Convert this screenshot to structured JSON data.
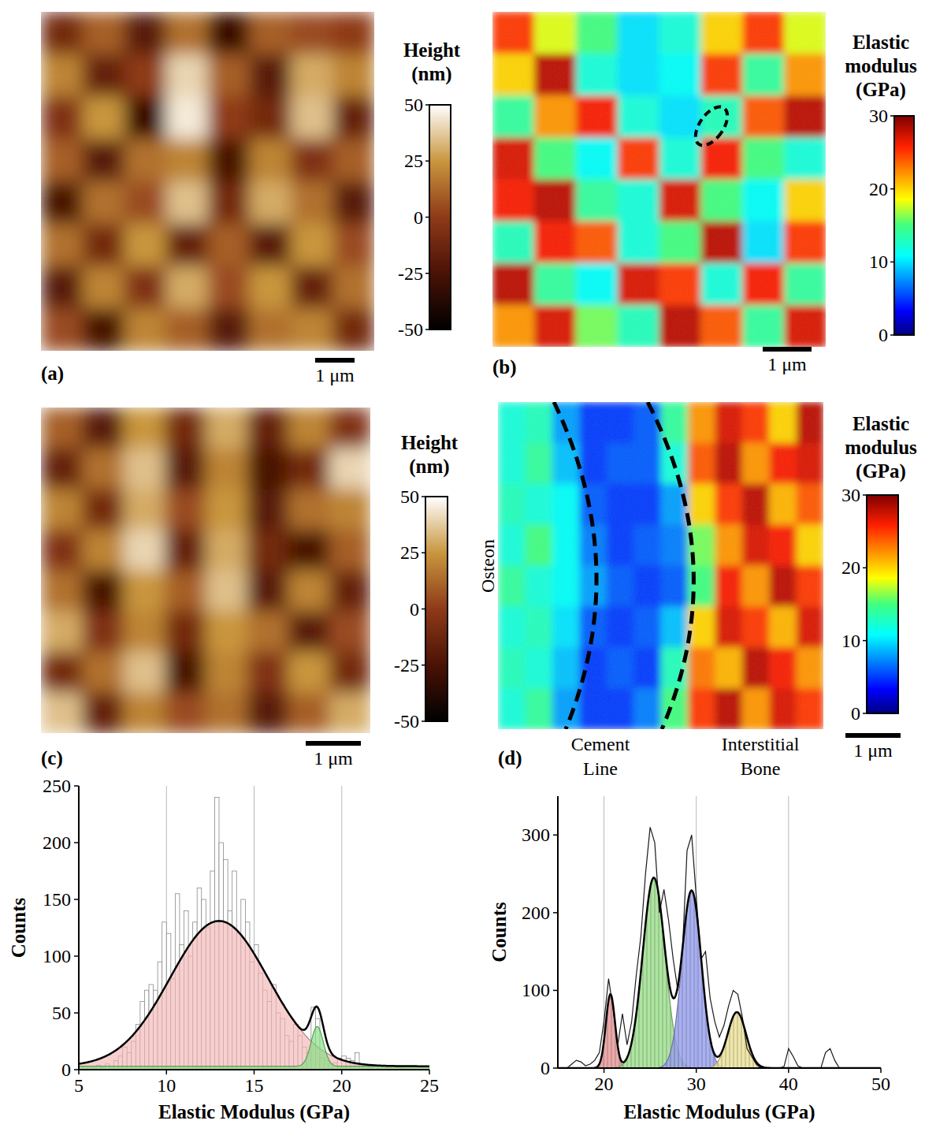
{
  "chart_data": [
    {
      "type": "heatmap",
      "panel_label": "(a)",
      "color": "copper",
      "scale_bar": "1 μm",
      "colorbar": {
        "title": "Height (nm)",
        "range": [
          -50,
          50
        ],
        "ticks": [
          -50,
          -25,
          0,
          25,
          50
        ]
      },
      "cells": [
        [
          -10,
          10,
          -20,
          15,
          -30,
          10,
          5,
          0
        ],
        [
          20,
          -15,
          0,
          40,
          10,
          -20,
          30,
          20
        ],
        [
          -5,
          25,
          -30,
          45,
          0,
          -10,
          35,
          -15
        ],
        [
          10,
          -20,
          15,
          20,
          -25,
          20,
          -5,
          10
        ],
        [
          -25,
          15,
          5,
          35,
          -10,
          30,
          15,
          -20
        ],
        [
          15,
          -10,
          25,
          -15,
          10,
          -20,
          25,
          5
        ],
        [
          -20,
          20,
          -5,
          30,
          5,
          25,
          -15,
          15
        ],
        [
          5,
          -25,
          20,
          10,
          -20,
          15,
          20,
          -10
        ]
      ]
    },
    {
      "type": "heatmap",
      "panel_label": "(b)",
      "color": "jet",
      "scale_bar": "1 μm",
      "colorbar": {
        "title": "Elastic modulus (GPa)",
        "range": [
          0,
          30
        ],
        "ticks": [
          0,
          10,
          20,
          30
        ]
      },
      "cells": [
        [
          25,
          18,
          15,
          10,
          12,
          20,
          25,
          18
        ],
        [
          20,
          28,
          12,
          10,
          11,
          25,
          14,
          22
        ],
        [
          14,
          22,
          26,
          12,
          10,
          13,
          24,
          28
        ],
        [
          27,
          15,
          11,
          25,
          12,
          26,
          15,
          12
        ],
        [
          26,
          28,
          14,
          12,
          27,
          15,
          11,
          20
        ],
        [
          13,
          26,
          24,
          12,
          15,
          28,
          10,
          25
        ],
        [
          28,
          14,
          11,
          27,
          25,
          12,
          26,
          14
        ],
        [
          22,
          27,
          16,
          13,
          28,
          24,
          14,
          27
        ]
      ]
    },
    {
      "type": "heatmap",
      "panel_label": "(c)",
      "color": "copper",
      "scale_bar": "1 μm",
      "colorbar": {
        "title": "Height (nm)",
        "range": [
          -50,
          50
        ],
        "ticks": [
          -50,
          -25,
          0,
          25,
          50
        ]
      },
      "cells": [
        [
          10,
          -20,
          25,
          -10,
          30,
          -15,
          20,
          -5
        ],
        [
          -15,
          15,
          35,
          -20,
          20,
          -25,
          -10,
          40
        ],
        [
          20,
          -10,
          30,
          5,
          25,
          -20,
          15,
          20
        ],
        [
          -5,
          20,
          40,
          -15,
          30,
          -10,
          -25,
          10
        ],
        [
          15,
          -25,
          25,
          10,
          35,
          -20,
          20,
          -15
        ],
        [
          30,
          -5,
          20,
          -10,
          25,
          15,
          -20,
          5
        ],
        [
          -10,
          15,
          35,
          -25,
          20,
          -5,
          25,
          -10
        ],
        [
          35,
          -15,
          20,
          5,
          15,
          -20,
          10,
          30
        ]
      ]
    },
    {
      "type": "heatmap",
      "panel_label": "(d)",
      "color": "jet",
      "scale_bar": "1 μm",
      "annotations": [
        "Osteon",
        "Cement Line",
        "Interstitial Bone"
      ],
      "colorbar": {
        "title": "Elastic modulus (GPa)",
        "range": [
          0,
          30
        ],
        "ticks": [
          0,
          10,
          20,
          30
        ]
      },
      "cells": [
        [
          12,
          13,
          8,
          5,
          5,
          6,
          14,
          22,
          27,
          25,
          20,
          28
        ],
        [
          12,
          14,
          9,
          5,
          6,
          6,
          12,
          24,
          28,
          22,
          26,
          27
        ],
        [
          13,
          12,
          11,
          6,
          5,
          5,
          8,
          20,
          25,
          28,
          21,
          24
        ],
        [
          12,
          15,
          11,
          7,
          5,
          6,
          7,
          16,
          22,
          27,
          26,
          20
        ],
        [
          14,
          12,
          11,
          8,
          6,
          5,
          6,
          15,
          26,
          22,
          28,
          25
        ],
        [
          12,
          13,
          10,
          6,
          5,
          6,
          9,
          20,
          27,
          25,
          21,
          27
        ],
        [
          13,
          12,
          9,
          5,
          6,
          5,
          13,
          23,
          21,
          28,
          26,
          22
        ],
        [
          12,
          14,
          8,
          5,
          5,
          7,
          15,
          25,
          28,
          22,
          27,
          25
        ]
      ]
    },
    {
      "type": "histogram",
      "x_label": "Elastic Modulus (GPa)",
      "y_label": "Counts",
      "grid": true,
      "xlim": [
        5,
        25
      ],
      "xticks": [
        5,
        10,
        15,
        20,
        25
      ],
      "ylim": [
        0,
        250
      ],
      "yticks": [
        0,
        50,
        100,
        150,
        200,
        250
      ],
      "bins": [
        5,
        5.25,
        5.5,
        5.75,
        6,
        6.25,
        6.5,
        6.75,
        7,
        7.25,
        7.5,
        7.75,
        8,
        8.25,
        8.5,
        8.75,
        9,
        9.25,
        9.5,
        9.75,
        10,
        10.25,
        10.5,
        10.75,
        11,
        11.25,
        11.5,
        11.75,
        12,
        12.25,
        12.5,
        12.75,
        13,
        13.25,
        13.5,
        13.75,
        14,
        14.25,
        14.5,
        14.75,
        15,
        15.25,
        15.5,
        15.75,
        16,
        16.25,
        16.5,
        16.75,
        17,
        17.25,
        17.5,
        17.75,
        18,
        18.25,
        18.5,
        18.75,
        19,
        19.25,
        19.5,
        19.75,
        20,
        20.25,
        20.5,
        20.75,
        21,
        21.25,
        21.5,
        21.75,
        22,
        22.25,
        22.5,
        22.75,
        23,
        23.25,
        23.5,
        23.75,
        24,
        24.25,
        24.5,
        24.75,
        25
      ],
      "values": [
        2,
        0,
        3,
        1,
        4,
        2,
        5,
        3,
        8,
        12,
        20,
        15,
        25,
        40,
        60,
        70,
        75,
        70,
        95,
        130,
        120,
        80,
        155,
        110,
        140,
        100,
        130,
        160,
        150,
        125,
        175,
        240,
        200,
        185,
        140,
        175,
        120,
        150,
        130,
        95,
        110,
        85,
        70,
        60,
        75,
        50,
        45,
        30,
        25,
        40,
        30,
        20,
        15,
        55,
        45,
        10,
        8,
        5,
        6,
        10,
        12,
        10,
        8,
        15,
        5,
        3,
        2,
        0,
        1,
        0,
        2,
        0,
        0,
        1,
        0,
        0,
        0,
        0,
        0,
        0
      ],
      "fit_baseline": 3,
      "fits": [
        {
          "center": 13,
          "amplitude": 128,
          "sigma": 2.8,
          "color": "#f4b6b6"
        },
        {
          "center": 18.6,
          "amplitude": 35,
          "sigma": 0.35,
          "color": "#7fe07f"
        }
      ]
    },
    {
      "type": "line",
      "x_label": "Elastic Modulus (GPa)",
      "y_label": "Counts",
      "grid": true,
      "xlim": [
        15,
        50
      ],
      "xticks": [
        20,
        30,
        40,
        50
      ],
      "ylim": [
        0,
        350
      ],
      "yticks": [
        0,
        100,
        200,
        300
      ],
      "x": [
        15,
        15.5,
        16,
        16.5,
        17,
        17.5,
        18,
        18.5,
        19,
        19.5,
        20,
        20.5,
        21,
        21.5,
        22,
        22.5,
        23,
        23.5,
        24,
        24.5,
        25,
        25.5,
        26,
        26.5,
        27,
        27.5,
        28,
        28.5,
        29,
        29.5,
        30,
        30.5,
        31,
        31.5,
        32,
        32.5,
        33,
        33.5,
        34,
        34.5,
        35,
        35.5,
        36,
        36.5,
        37,
        37.5,
        38,
        38.5,
        39,
        39.5,
        40,
        40.5,
        41,
        41.5,
        42,
        42.5,
        43,
        43.5,
        44,
        44.5,
        45,
        45.5,
        46,
        46.5,
        47,
        47.5,
        48,
        48.5,
        49,
        49.5,
        50
      ],
      "values": [
        0,
        0,
        0,
        5,
        10,
        8,
        3,
        5,
        10,
        20,
        60,
        115,
        75,
        30,
        70,
        30,
        60,
        120,
        170,
        250,
        310,
        290,
        200,
        230,
        190,
        140,
        100,
        150,
        280,
        300,
        220,
        140,
        150,
        90,
        60,
        40,
        55,
        80,
        100,
        95,
        65,
        25,
        15,
        5,
        0,
        0,
        0,
        0,
        0,
        2,
        25,
        15,
        3,
        0,
        0,
        0,
        0,
        0,
        20,
        25,
        10,
        0,
        0,
        0,
        0,
        0,
        0,
        0,
        0,
        0,
        0
      ],
      "fits": [
        {
          "center": 20.7,
          "amplitude": 95,
          "sigma": 0.5,
          "color": "#e89a9a"
        },
        {
          "center": 25.4,
          "amplitude": 245,
          "sigma": 1.2,
          "color": "#9fe08f"
        },
        {
          "center": 29.5,
          "amplitude": 228,
          "sigma": 1.05,
          "color": "#9aa2ee"
        },
        {
          "center": 34.4,
          "amplitude": 72,
          "sigma": 1.0,
          "color": "#ece29a"
        }
      ]
    }
  ]
}
